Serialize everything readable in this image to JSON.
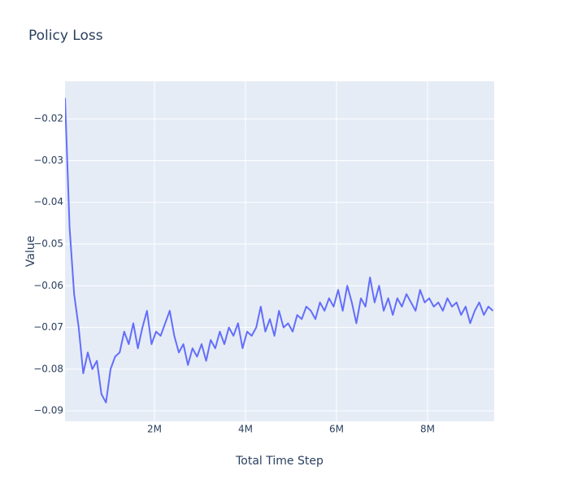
{
  "chart_data": {
    "type": "line",
    "title": "Policy Loss",
    "x_label": "Total Time Step",
    "y_label": "Value",
    "color": "#636efa",
    "grid": true,
    "xlim": [
      36000,
      9464000
    ],
    "xticks": [
      {
        "value": 2000000,
        "label": "2M"
      },
      {
        "value": 4000000,
        "label": "4M"
      },
      {
        "value": 6000000,
        "label": "6M"
      },
      {
        "value": 8000000,
        "label": "8M"
      }
    ],
    "ylim": [
      -0.0925,
      -0.011
    ],
    "yticks": [
      {
        "value": -0.02,
        "label": "−0.02"
      },
      {
        "value": -0.03,
        "label": "−0.03"
      },
      {
        "value": -0.04,
        "label": "−0.04"
      },
      {
        "value": -0.05,
        "label": "−0.05"
      },
      {
        "value": -0.06,
        "label": "−0.06"
      },
      {
        "value": -0.07,
        "label": "−0.07"
      },
      {
        "value": -0.08,
        "label": "−0.08"
      },
      {
        "value": -0.09,
        "label": "−0.09"
      }
    ],
    "x": [
      36000,
      136000,
      236000,
      336000,
      436000,
      536000,
      636000,
      736000,
      836000,
      936000,
      1036000,
      1136000,
      1236000,
      1336000,
      1436000,
      1536000,
      1636000,
      1736000,
      1836000,
      1936000,
      2036000,
      2136000,
      2236000,
      2336000,
      2436000,
      2536000,
      2636000,
      2736000,
      2836000,
      2936000,
      3036000,
      3136000,
      3236000,
      3336000,
      3436000,
      3536000,
      3636000,
      3736000,
      3836000,
      3936000,
      4036000,
      4136000,
      4236000,
      4336000,
      4436000,
      4536000,
      4636000,
      4736000,
      4836000,
      4936000,
      5036000,
      5136000,
      5236000,
      5336000,
      5436000,
      5536000,
      5636000,
      5736000,
      5836000,
      5936000,
      6036000,
      6136000,
      6236000,
      6336000,
      6436000,
      6536000,
      6636000,
      6736000,
      6836000,
      6936000,
      7036000,
      7136000,
      7236000,
      7336000,
      7436000,
      7536000,
      7636000,
      7736000,
      7836000,
      7936000,
      8036000,
      8136000,
      8236000,
      8336000,
      8436000,
      8536000,
      8636000,
      8736000,
      8836000,
      8936000,
      9036000,
      9136000,
      9236000,
      9336000,
      9436000
    ],
    "values": [
      -0.015,
      -0.046,
      -0.062,
      -0.07,
      -0.081,
      -0.076,
      -0.08,
      -0.078,
      -0.086,
      -0.088,
      -0.08,
      -0.077,
      -0.076,
      -0.071,
      -0.074,
      -0.069,
      -0.075,
      -0.07,
      -0.066,
      -0.074,
      -0.071,
      -0.072,
      -0.069,
      -0.066,
      -0.072,
      -0.076,
      -0.074,
      -0.079,
      -0.075,
      -0.077,
      -0.074,
      -0.078,
      -0.073,
      -0.075,
      -0.071,
      -0.074,
      -0.07,
      -0.072,
      -0.069,
      -0.075,
      -0.071,
      -0.072,
      -0.07,
      -0.065,
      -0.071,
      -0.068,
      -0.072,
      -0.066,
      -0.07,
      -0.069,
      -0.071,
      -0.067,
      -0.068,
      -0.065,
      -0.066,
      -0.068,
      -0.064,
      -0.066,
      -0.063,
      -0.065,
      -0.061,
      -0.066,
      -0.06,
      -0.064,
      -0.069,
      -0.063,
      -0.065,
      -0.058,
      -0.064,
      -0.06,
      -0.066,
      -0.063,
      -0.067,
      -0.063,
      -0.065,
      -0.062,
      -0.064,
      -0.066,
      -0.061,
      -0.064,
      -0.063,
      -0.065,
      -0.064,
      -0.066,
      -0.063,
      -0.065,
      -0.064,
      -0.067,
      -0.065,
      -0.069,
      -0.066,
      -0.064,
      -0.067,
      -0.065,
      -0.066
    ]
  }
}
